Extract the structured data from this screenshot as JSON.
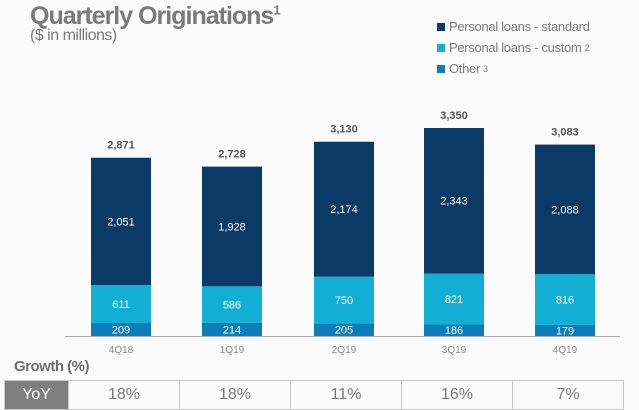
{
  "chart_data": {
    "type": "stacked-bar",
    "title": "Quarterly Originations",
    "title_footnote": "1",
    "subtitle": "($ in millions)",
    "categories": [
      "4Q18",
      "1Q19",
      "2Q19",
      "3Q19",
      "4Q19"
    ],
    "series": [
      {
        "name": "Other",
        "footnote": "3",
        "color": "#0b7dbd",
        "values": [
          209,
          214,
          205,
          186,
          179
        ]
      },
      {
        "name": "Personal  loans - custom",
        "footnote": "2",
        "color": "#12aed3",
        "values": [
          611,
          586,
          750,
          821,
          816
        ]
      },
      {
        "name": "Personal  loans - standard",
        "footnote": "",
        "color": "#0b3a66",
        "values": [
          2051,
          1928,
          2174,
          2343,
          2088
        ]
      }
    ],
    "totals": [
      "2,871",
      "2,728",
      "3,130",
      "3,350",
      "3,083"
    ],
    "labels": [
      [
        "209",
        "214",
        "205",
        "186",
        "179"
      ],
      [
        "611",
        "586",
        "750",
        "821",
        "816"
      ],
      [
        "2,051",
        "1,928",
        "2,174",
        "2,343",
        "2,088"
      ]
    ],
    "legend_position": "top-right",
    "grid": false
  },
  "growth": {
    "title": "Growth (%)",
    "row_label": "YoY",
    "values": [
      "18%",
      "18%",
      "11%",
      "16%",
      "7%"
    ]
  }
}
